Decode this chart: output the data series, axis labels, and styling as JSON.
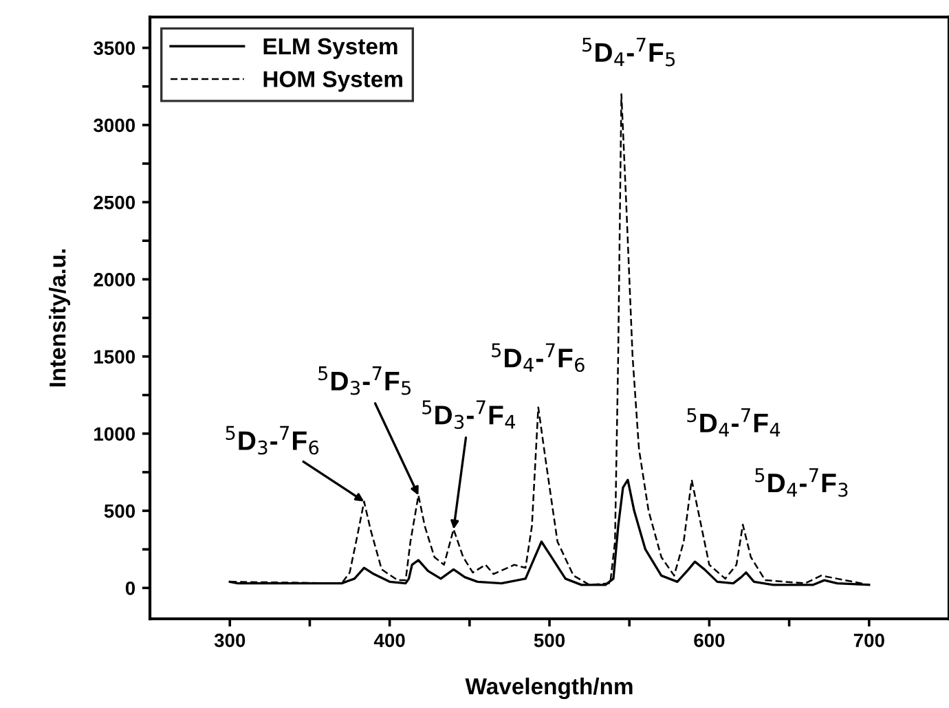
{
  "chart_data": {
    "type": "line",
    "xlabel": "Wavelength/nm",
    "ylabel": "Intensity/a.u.",
    "xlim": [
      250,
      750
    ],
    "xticks": [
      300,
      {
        "value": 350,
        "label": null
      },
      400,
      {
        "value": 450,
        "label": null
      },
      500,
      {
        "value": 550,
        "label": null
      },
      600,
      {
        "value": 650,
        "label": null
      },
      700
    ],
    "ylim": [
      -200,
      3700
    ],
    "yticks": [
      0,
      {
        "value": 250,
        "label": null
      },
      500,
      {
        "value": 750,
        "label": null
      },
      1000,
      {
        "value": 1250,
        "label": null
      },
      1500,
      {
        "value": 1750,
        "label": null
      },
      2000,
      {
        "value": 2250,
        "label": null
      },
      2500,
      {
        "value": 2750,
        "label": null
      },
      3000,
      {
        "value": 3250,
        "label": null
      },
      3500
    ],
    "grid": false,
    "legend": "top left",
    "series": [
      {
        "name": "ELM System",
        "color": "#000000",
        "line_style": "solid",
        "x": [
          300,
          305,
          320,
          370,
          378,
          384,
          390,
          400,
          410,
          412,
          414,
          418,
          424,
          432,
          440,
          447,
          455,
          470,
          485,
          490,
          495,
          500,
          510,
          520,
          535,
          540,
          543,
          546,
          549,
          553,
          560,
          570,
          580,
          587,
          591,
          597,
          605,
          615,
          620,
          623,
          628,
          640,
          665,
          672,
          680,
          700
        ],
        "values": [
          40,
          30,
          30,
          30,
          60,
          130,
          90,
          40,
          30,
          60,
          150,
          180,
          110,
          60,
          120,
          70,
          40,
          30,
          60,
          180,
          300,
          220,
          60,
          20,
          20,
          60,
          400,
          650,
          700,
          500,
          250,
          80,
          40,
          120,
          170,
          120,
          40,
          30,
          70,
          100,
          40,
          20,
          20,
          50,
          30,
          20
        ]
      },
      {
        "name": "HOM System",
        "color": "#000000",
        "line_style": "dashed",
        "x": [
          300,
          370,
          375,
          380,
          384,
          388,
          395,
          405,
          410,
          413,
          418,
          422,
          428,
          434,
          440,
          446,
          452,
          460,
          465,
          478,
          485,
          489,
          493,
          498,
          505,
          515,
          525,
          538,
          541,
          543,
          545,
          548,
          552,
          556,
          562,
          570,
          578,
          584,
          589,
          594,
          600,
          610,
          617,
          621,
          626,
          635,
          660,
          670,
          680,
          690,
          700
        ],
        "values": [
          40,
          30,
          100,
          350,
          560,
          380,
          120,
          50,
          50,
          300,
          600,
          400,
          200,
          150,
          380,
          200,
          100,
          150,
          90,
          150,
          130,
          400,
          1170,
          800,
          300,
          80,
          20,
          30,
          300,
          1500,
          3200,
          2500,
          1500,
          900,
          500,
          200,
          80,
          300,
          700,
          450,
          150,
          60,
          150,
          410,
          200,
          50,
          30,
          80,
          60,
          40,
          20
        ]
      }
    ],
    "annotations": [
      {
        "text": "$^{5}$D$_{3}$-$^{7}$F$_{6}$",
        "x": 384,
        "y": 560
      },
      {
        "text": "$^{5}$D$_{3}$-$^{7}$F$_{5}$",
        "x": 418,
        "y": 600
      },
      {
        "text": "$^{5}$D$_{3}$-$^{7}$F$_{4}$",
        "x": 440,
        "y": 380
      },
      {
        "text": "$^{5}$D$_{4}$-$^{7}$F$_{6}$",
        "x": 493,
        "y": 1170
      },
      {
        "text": "$^{5}$D$_{4}$-$^{7}$F$_{5}$",
        "x": 545,
        "y": 3200
      },
      {
        "text": "$^{5}$D$_{4}$-$^{7}$F$_{4}$",
        "x": 589,
        "y": 700
      },
      {
        "text": "$^{5}$D$_{4}$-$^{7}$F$_{3}$",
        "x": 622,
        "y": 410
      }
    ]
  }
}
